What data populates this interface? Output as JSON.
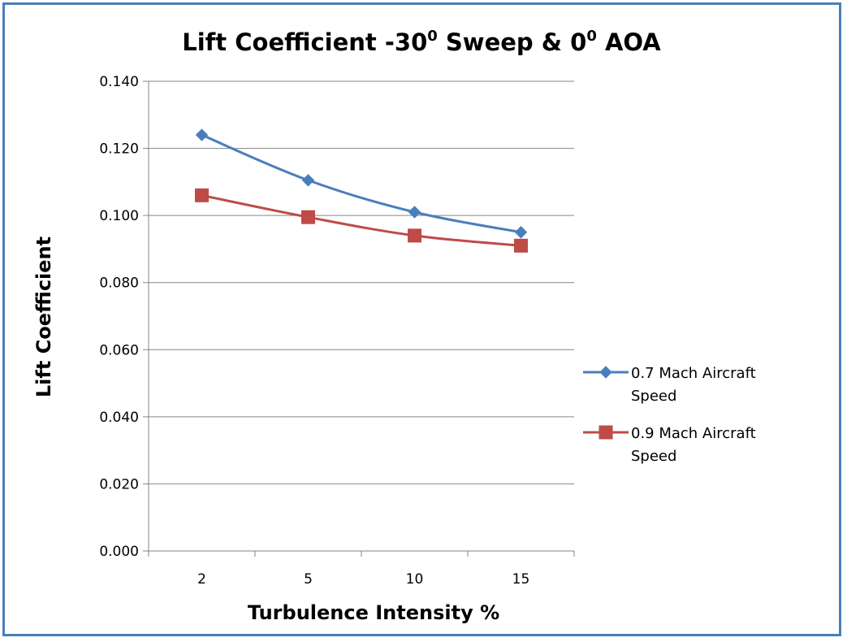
{
  "chart_data": {
    "type": "line",
    "title": "Lift Coefficient -30",
    "title_sup1": "0",
    "title_mid": " Sweep  & 0",
    "title_sup2": "0",
    "title_end": " AOA",
    "xlabel": "Turbulence Intensity %",
    "ylabel": "Lift Coefficient",
    "categories": [
      "2",
      "5",
      "10",
      "15"
    ],
    "ylim": [
      0,
      0.14
    ],
    "yticks": [
      "0.000",
      "0.020",
      "0.040",
      "0.060",
      "0.080",
      "0.100",
      "0.120",
      "0.140"
    ],
    "grid": true,
    "legend_position": "right",
    "series": [
      {
        "name_line1": "0.7 Mach Aircraft",
        "name_line2": "Speed",
        "values": [
          0.124,
          0.1105,
          0.101,
          0.095
        ],
        "marker": "diamond",
        "color": "#4a7ebb"
      },
      {
        "name_line1": "0.9 Mach Aircraft",
        "name_line2": "Speed",
        "values": [
          0.106,
          0.0995,
          0.094,
          0.091
        ],
        "marker": "square",
        "color": "#be4b48"
      }
    ]
  }
}
